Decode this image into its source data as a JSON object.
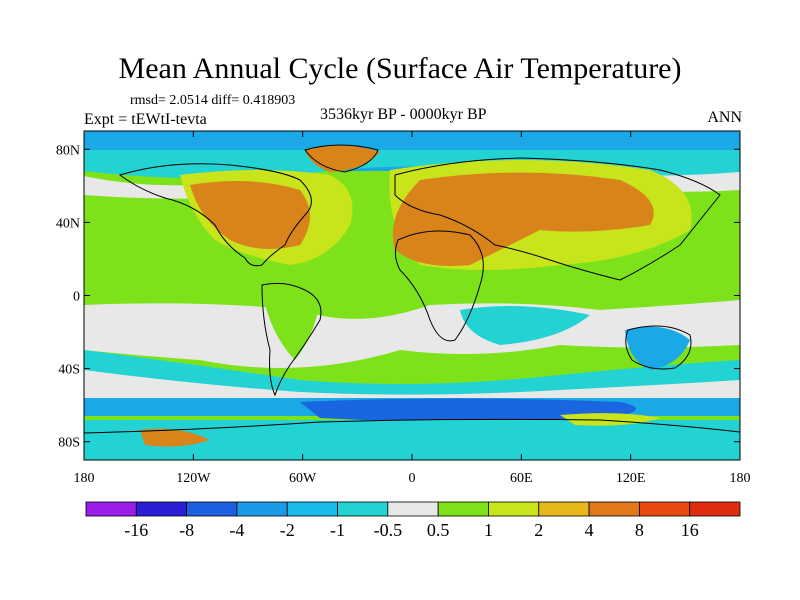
{
  "figure": {
    "title": "Mean Annual Cycle (Surface Air Temperature)",
    "stats_text": "rmsd= 2.0514 diff= 0.418903",
    "experiment_text": "Expt = tEWtI-tevta",
    "period_text": "3536kyr BP - 0000kyr BP",
    "season_text": "ANN"
  },
  "map": {
    "lat_ticks": [
      "80N",
      "40N",
      "0",
      "40S",
      "80S"
    ],
    "lat_values": [
      80,
      40,
      0,
      -40,
      -80
    ],
    "lon_ticks": [
      "180",
      "120W",
      "60W",
      "0",
      "60E",
      "120E",
      "180"
    ],
    "lon_values": [
      -180,
      -120,
      -60,
      0,
      60,
      120,
      180
    ],
    "lon_range": [
      -180,
      180
    ],
    "lat_range": [
      -90,
      90
    ]
  },
  "colorbar": {
    "labels": [
      "-16",
      "-8",
      "-4",
      "-2",
      "-1",
      "-0.5",
      "0.5",
      "1",
      "2",
      "4",
      "8",
      "16"
    ],
    "colors": [
      "#9b1de8",
      "#2a1fd6",
      "#1c5fe0",
      "#1a9be6",
      "#19bce8",
      "#23d3d3",
      "#e8e8e8",
      "#7ee21a",
      "#c8e41a",
      "#e6b81a",
      "#e07a18",
      "#e84a12",
      "#e02c10"
    ]
  },
  "legend_colors": {
    "strong_cool": "#1a66e0",
    "cool": "#1aa8e6",
    "slight_cool": "#2ad0d8",
    "neutral": "#e8e8e8",
    "slight_warm": "#7ee21a",
    "warm": "#c8e41a",
    "warmer": "#e6b81a",
    "hot": "#d8841a",
    "hottest": "#e05a14"
  }
}
